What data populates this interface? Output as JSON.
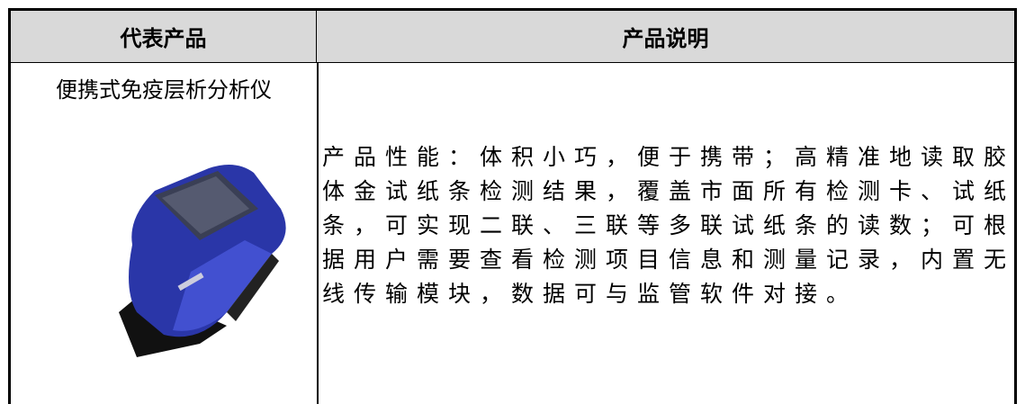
{
  "table": {
    "headers": [
      "代表产品",
      "产品说明"
    ],
    "rows": [
      [
        "便携式免疫层析分析仪",
        "产品性能：体积小巧，便于携带；高精准地读取胶体金试纸条检测结果，覆盖市面所有检测卡、试纸条，可实现二联、三联等多联试纸条的读数；可根据用户需要查看检测项目信息和测量记录，内置无线传输模块，数据可与监管软件对接。"
      ]
    ]
  }
}
